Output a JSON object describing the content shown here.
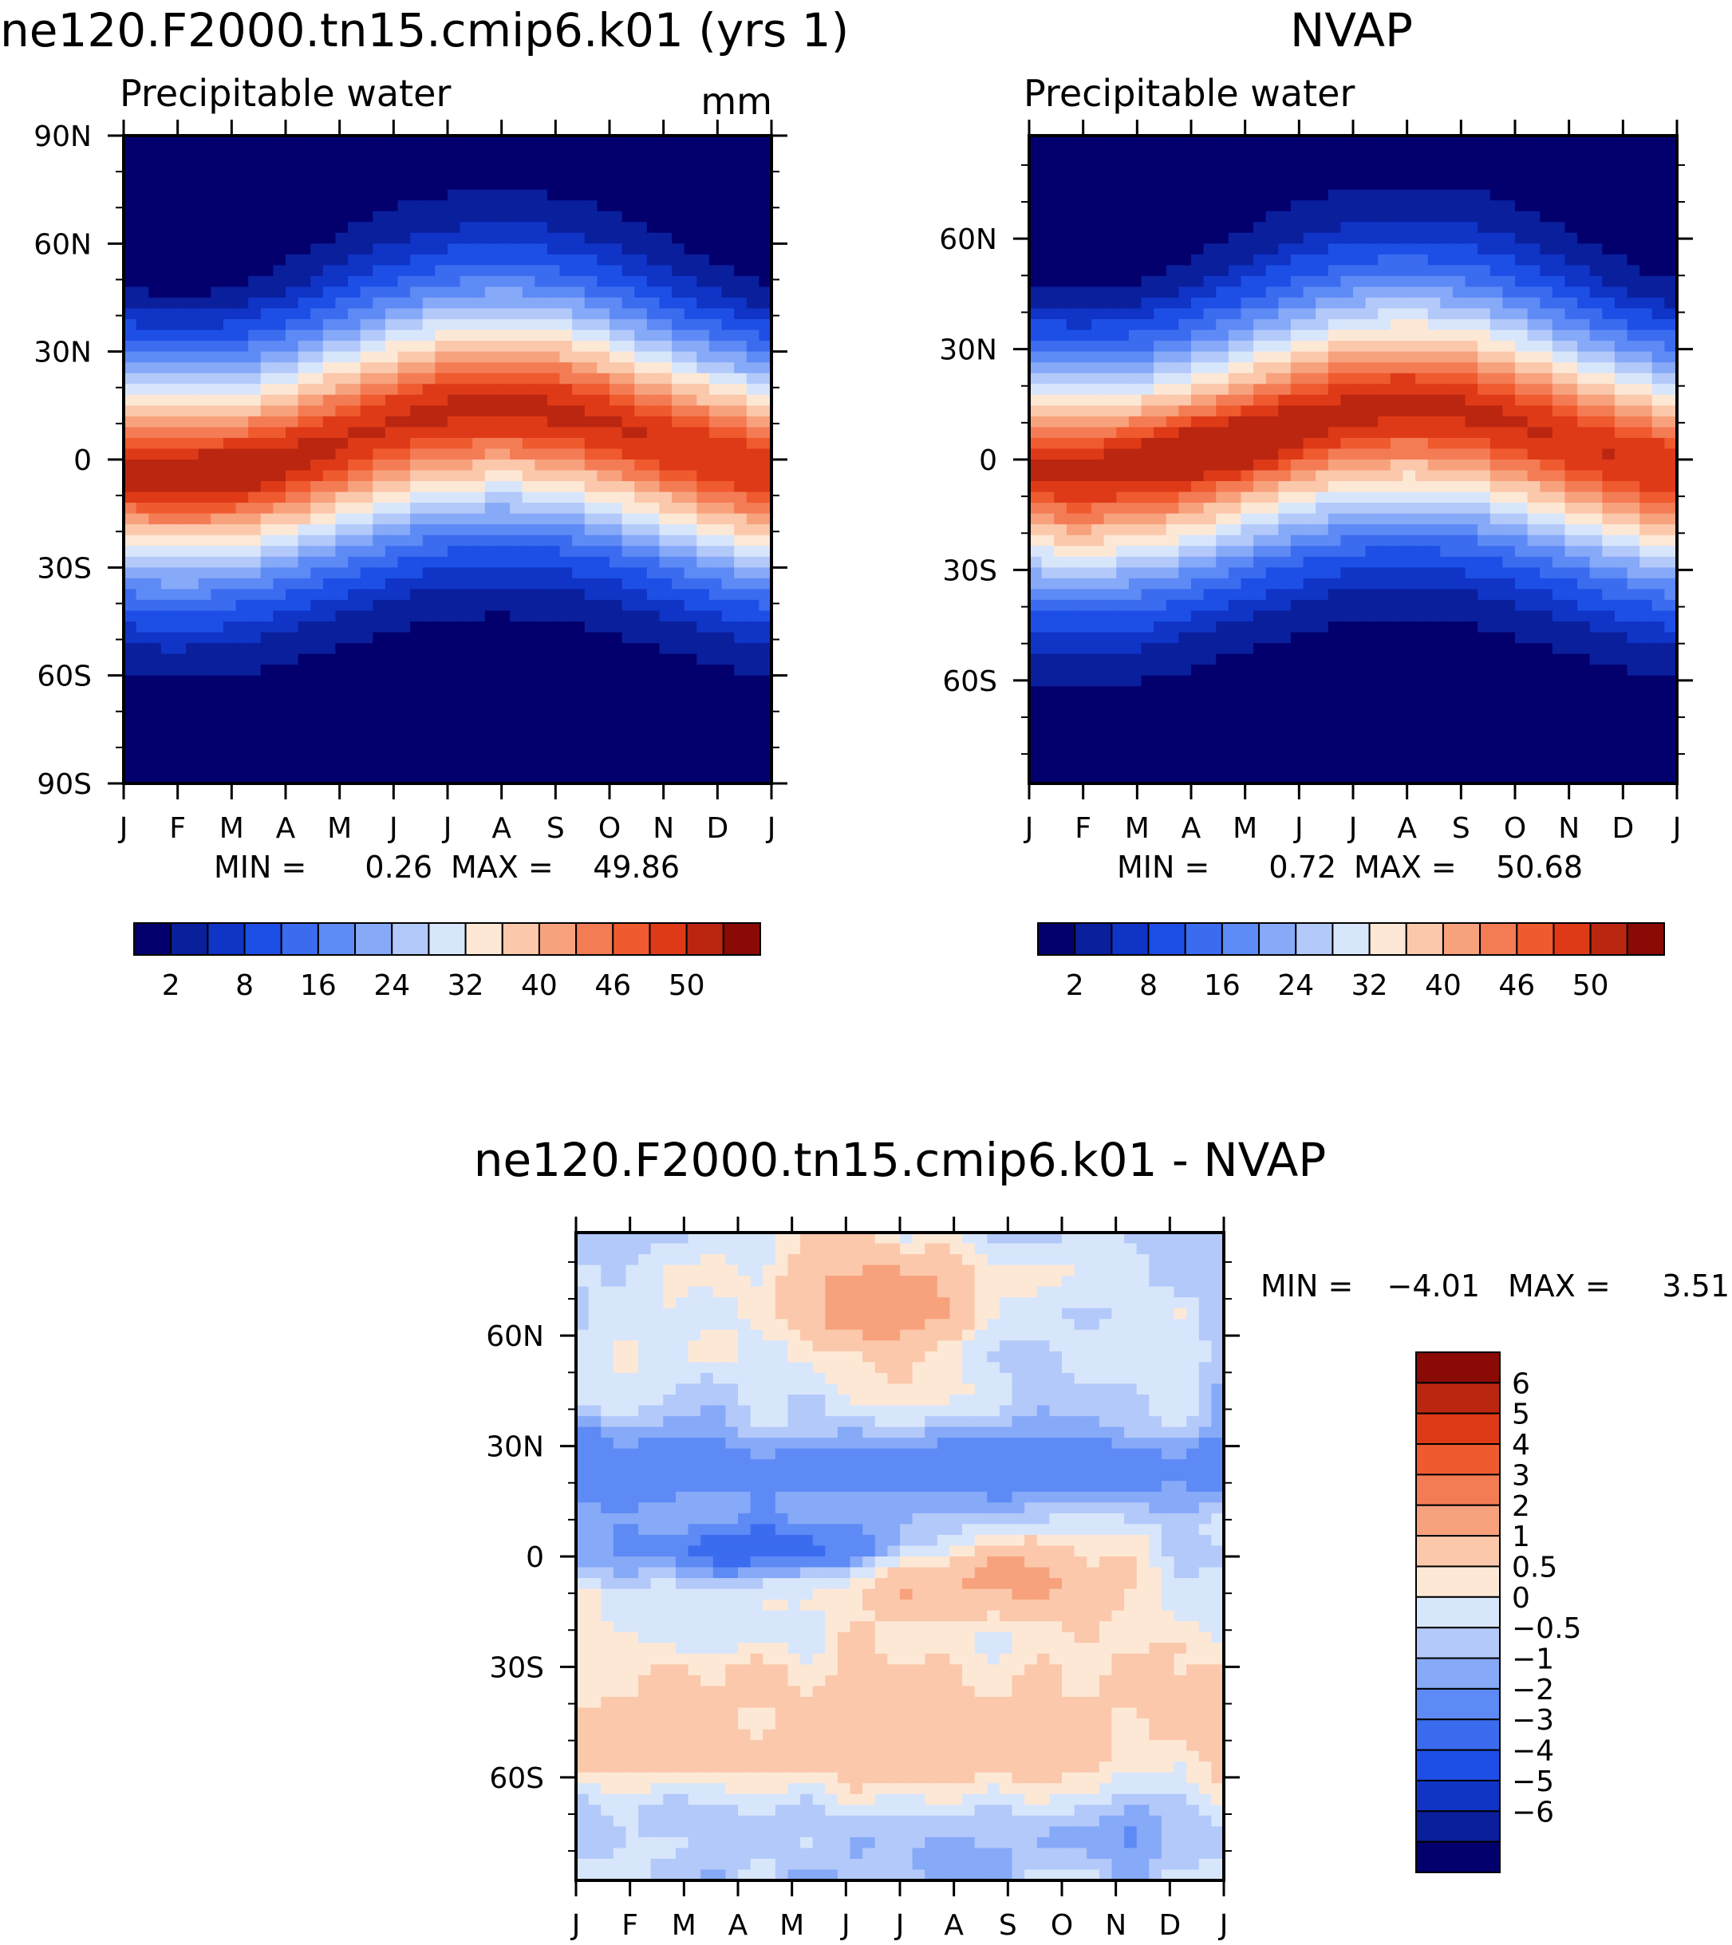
{
  "chart_data": [
    {
      "type": "heatmap",
      "title": "ne120.F2000.tn15.cmip6.k01 (yrs 1)",
      "subtitle": "Precipitable water",
      "units": "mm",
      "x_ticks": [
        "J",
        "F",
        "M",
        "A",
        "M",
        "J",
        "J",
        "A",
        "S",
        "O",
        "N",
        "D",
        "J"
      ],
      "y_ticks": [
        {
          "value": 90,
          "label": "90N"
        },
        {
          "value": 60,
          "label": "60N"
        },
        {
          "value": 30,
          "label": "30N"
        },
        {
          "value": 0,
          "label": "0"
        },
        {
          "value": -30,
          "label": "30S"
        },
        {
          "value": -60,
          "label": "60S"
        },
        {
          "value": -90,
          "label": "90S"
        }
      ],
      "ylim": [
        -90,
        90
      ],
      "min_label": "MIN =",
      "min_value": "0.26",
      "max_label": "MAX =",
      "max_value": "49.86",
      "levels": [
        0,
        2,
        5,
        8,
        12,
        16,
        20,
        24,
        28,
        32,
        36,
        40,
        43,
        46,
        48,
        50,
        55
      ],
      "colorbar_labels": [
        {
          "after_box": 1,
          "text": "2"
        },
        {
          "after_box": 3,
          "text": "8"
        },
        {
          "after_box": 5,
          "text": "16"
        },
        {
          "after_box": 7,
          "text": "24"
        },
        {
          "after_box": 9,
          "text": "32"
        },
        {
          "after_box": 11,
          "text": "40"
        },
        {
          "after_box": 13,
          "text": "46"
        },
        {
          "after_box": 15,
          "text": "50"
        }
      ],
      "field": "model"
    },
    {
      "type": "heatmap",
      "title": "NVAP",
      "subtitle": "Precipitable water",
      "x_ticks": [
        "J",
        "F",
        "M",
        "A",
        "M",
        "J",
        "J",
        "A",
        "S",
        "O",
        "N",
        "D",
        "J"
      ],
      "y_ticks": [
        {
          "value": 60,
          "label": "60N"
        },
        {
          "value": 30,
          "label": "30N"
        },
        {
          "value": 0,
          "label": "0"
        },
        {
          "value": -30,
          "label": "30S"
        },
        {
          "value": -60,
          "label": "60S"
        }
      ],
      "ylim": [
        -88,
        88
      ],
      "min_label": "MIN =",
      "min_value": "0.72",
      "max_label": "MAX =",
      "max_value": "50.68",
      "levels": [
        0,
        2,
        5,
        8,
        12,
        16,
        20,
        24,
        28,
        32,
        36,
        40,
        43,
        46,
        48,
        50,
        55
      ],
      "colorbar_labels": [
        {
          "after_box": 1,
          "text": "2"
        },
        {
          "after_box": 3,
          "text": "8"
        },
        {
          "after_box": 5,
          "text": "16"
        },
        {
          "after_box": 7,
          "text": "24"
        },
        {
          "after_box": 9,
          "text": "32"
        },
        {
          "after_box": 11,
          "text": "40"
        },
        {
          "after_box": 13,
          "text": "46"
        },
        {
          "after_box": 15,
          "text": "50"
        }
      ],
      "field": "obs"
    },
    {
      "type": "heatmap",
      "title": "ne120.F2000.tn15.cmip6.k01 - NVAP",
      "x_ticks": [
        "J",
        "F",
        "M",
        "A",
        "M",
        "J",
        "J",
        "A",
        "S",
        "O",
        "N",
        "D",
        "J"
      ],
      "y_ticks": [
        {
          "value": 60,
          "label": "60N"
        },
        {
          "value": 30,
          "label": "30N"
        },
        {
          "value": 0,
          "label": "0"
        },
        {
          "value": -30,
          "label": "30S"
        },
        {
          "value": -60,
          "label": "60S"
        }
      ],
      "ylim": [
        -88,
        88
      ],
      "min_label": "MIN =",
      "min_value": "-4.01",
      "max_label": "MAX =",
      "max_value": "3.51",
      "levels": [
        -7,
        -6,
        -5,
        -4,
        -3,
        -2,
        -1,
        -0.5,
        0,
        0.5,
        1,
        2,
        3,
        4,
        5,
        6,
        7
      ],
      "colorbar_labels": [
        "6",
        "5",
        "4",
        "3",
        "2",
        "1",
        "0.5",
        "0",
        "-0.5",
        "-1",
        "-2",
        "-3",
        "-4",
        "-5",
        "-6"
      ],
      "field": "diff"
    }
  ],
  "palette": [
    "#03006e",
    "#0a1f9c",
    "#0f34c6",
    "#1d4fe6",
    "#3b6cf0",
    "#5e8af5",
    "#86a9f8",
    "#b3c9fa",
    "#d8e6fb",
    "#fde8d6",
    "#fbc8ab",
    "#f7a27d",
    "#f47c55",
    "#f05a2f",
    "#de3a17",
    "#bb2610",
    "#8a0a06"
  ]
}
